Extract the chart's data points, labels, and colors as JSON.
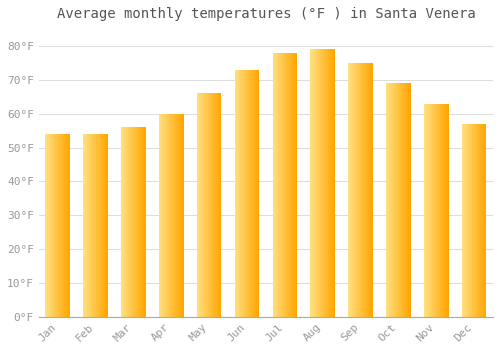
{
  "title": "Average monthly temperatures (°F ) in Santa Venera",
  "months": [
    "Jan",
    "Feb",
    "Mar",
    "Apr",
    "May",
    "Jun",
    "Jul",
    "Aug",
    "Sep",
    "Oct",
    "Nov",
    "Dec"
  ],
  "values": [
    54,
    54,
    56,
    60,
    66,
    73,
    78,
    79,
    75,
    69,
    63,
    57
  ],
  "bar_color_left": "#FFD966",
  "bar_color_right": "#FFA500",
  "ylim": [
    0,
    85
  ],
  "yticks": [
    0,
    10,
    20,
    30,
    40,
    50,
    60,
    70,
    80
  ],
  "ytick_labels": [
    "0°F",
    "10°F",
    "20°F",
    "30°F",
    "40°F",
    "50°F",
    "60°F",
    "70°F",
    "80°F"
  ],
  "background_color": "#ffffff",
  "grid_color": "#dddddd",
  "title_fontsize": 10,
  "tick_fontsize": 8,
  "tick_color": "#999999",
  "title_color": "#555555"
}
